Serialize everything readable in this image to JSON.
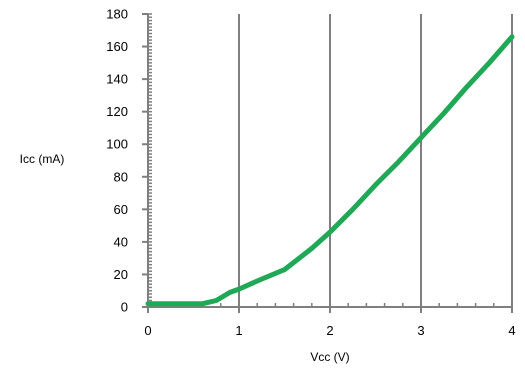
{
  "chart_data": {
    "type": "line",
    "title": "",
    "xlabel": "Vcc (V)",
    "ylabel": "Icc (mA)",
    "xlim": [
      0,
      4
    ],
    "ylim": [
      0,
      180
    ],
    "xticks": [
      0,
      1,
      2,
      3,
      4
    ],
    "yticks": [
      0,
      20,
      40,
      60,
      80,
      100,
      120,
      140,
      160,
      180
    ],
    "grid": "vertical",
    "legend": "none",
    "series": [
      {
        "color": "#1fa855",
        "x": [
          0,
          0.6,
          0.75,
          0.9,
          1.0,
          1.2,
          1.5,
          1.8,
          2.0,
          2.25,
          2.5,
          2.75,
          3.0,
          3.25,
          3.5,
          3.75,
          4.0
        ],
        "y": [
          2,
          2,
          4,
          9,
          11,
          16,
          23,
          36,
          46,
          60,
          75,
          89,
          104,
          119,
          135,
          150,
          166
        ]
      }
    ]
  }
}
